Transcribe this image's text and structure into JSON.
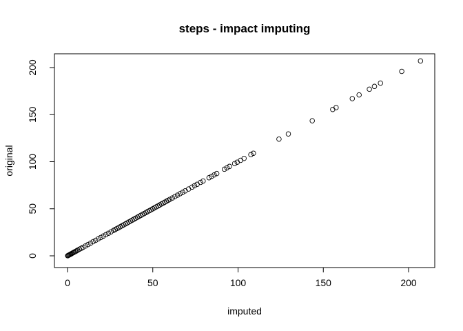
{
  "chart_data": {
    "type": "scatter",
    "title": "steps - impact imputing",
    "xlabel": "imputed",
    "ylabel": "original",
    "xlim": [
      0,
      207
    ],
    "ylim": [
      0,
      207
    ],
    "x_ticks": [
      0,
      50,
      100,
      150,
      200
    ],
    "y_ticks": [
      0,
      50,
      100,
      150,
      200
    ],
    "x_tick_labels": [
      "0",
      "50",
      "100",
      "150",
      "200"
    ],
    "y_tick_labels": [
      "0",
      "50",
      "100",
      "150",
      "200"
    ],
    "grid": false,
    "legend": "none",
    "points": {
      "x": [
        0.1,
        0.4,
        0.8,
        1.2,
        1.6,
        2.0,
        2.5,
        3.0,
        3.5,
        4.0,
        4.6,
        5.3,
        6.0,
        7.0,
        8.0,
        9.0,
        10.5,
        12,
        13.5,
        15,
        16.5,
        18,
        19.5,
        21,
        22.5,
        24,
        25.5,
        27,
        28,
        29,
        30,
        31,
        32,
        33,
        34,
        35,
        36,
        37,
        38,
        39,
        40,
        41,
        42,
        43,
        44,
        45,
        46,
        47,
        48,
        49,
        50,
        51,
        52,
        53,
        54,
        55,
        56,
        57,
        58,
        59,
        60,
        61.5,
        63,
        64.5,
        66,
        67.5,
        69,
        71,
        73,
        74.5,
        76,
        78,
        79.5,
        83,
        84.5,
        86,
        87.5,
        92,
        93.5,
        95,
        98,
        99.5,
        101.5,
        103.5,
        107.5,
        109,
        124,
        129.5,
        143.5,
        155.5,
        157.5,
        167,
        171,
        177,
        180,
        183.5,
        196,
        207
      ],
      "y": [
        0.1,
        0.4,
        0.8,
        1.2,
        1.6,
        2.0,
        2.5,
        3.0,
        3.5,
        4.0,
        4.6,
        5.3,
        6.0,
        7.0,
        8.0,
        9.0,
        10.5,
        12,
        13.5,
        15,
        16.5,
        18,
        19.5,
        21,
        22.5,
        24,
        25.5,
        27,
        28,
        29,
        30,
        31,
        32,
        33,
        34,
        35,
        36,
        37,
        38,
        39,
        40,
        41,
        42,
        43,
        44,
        45,
        46,
        47,
        48,
        49,
        50,
        51,
        52,
        53,
        54,
        55,
        56,
        57,
        58,
        59,
        60,
        61.5,
        63,
        64.5,
        66,
        67.5,
        69,
        71,
        73,
        74.5,
        76,
        78,
        79.5,
        83,
        84.5,
        86,
        87.5,
        92,
        93.5,
        95,
        98,
        99.5,
        101.5,
        103.5,
        107.5,
        109,
        124,
        129.5,
        143.5,
        155.5,
        157.5,
        167,
        171,
        177,
        180,
        183.5,
        196,
        207
      ]
    }
  }
}
